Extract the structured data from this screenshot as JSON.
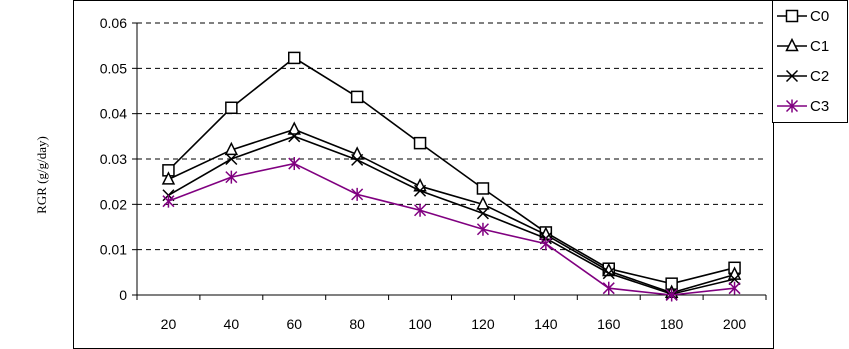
{
  "chart_data": {
    "type": "line",
    "ylabel": "RGR (g/g/day)",
    "xlabel": "",
    "title": "",
    "x": [
      20,
      40,
      60,
      80,
      100,
      120,
      140,
      160,
      180,
      200
    ],
    "xticks": [
      "20",
      "40",
      "60",
      "80",
      "100",
      "120",
      "140",
      "160",
      "180",
      "200"
    ],
    "yticks": [
      "0",
      "0.01",
      "0.02",
      "0.03",
      "0.04",
      "0.05",
      "0.06"
    ],
    "ylim": [
      0,
      0.06
    ],
    "grid": "horizontal-dashed",
    "legend_position": "right",
    "series": [
      {
        "name": "C0",
        "marker": "square",
        "color": "#000000",
        "values": [
          0.0275,
          0.0413,
          0.0523,
          0.0437,
          0.0335,
          0.0235,
          0.0138,
          0.0058,
          0.0025,
          0.006
        ]
      },
      {
        "name": "C1",
        "marker": "triangle",
        "color": "#000000",
        "values": [
          0.0255,
          0.032,
          0.0365,
          0.031,
          0.024,
          0.02,
          0.0133,
          0.0053,
          0.0005,
          0.0045
        ]
      },
      {
        "name": "C2",
        "marker": "x",
        "color": "#000000",
        "values": [
          0.022,
          0.03,
          0.035,
          0.0298,
          0.023,
          0.018,
          0.0125,
          0.0048,
          0.0002,
          0.0035
        ]
      },
      {
        "name": "C3",
        "marker": "star",
        "color": "#800080",
        "values": [
          0.0207,
          0.026,
          0.029,
          0.0222,
          0.0187,
          0.0145,
          0.0113,
          0.0015,
          0.0,
          0.0015
        ]
      }
    ]
  }
}
